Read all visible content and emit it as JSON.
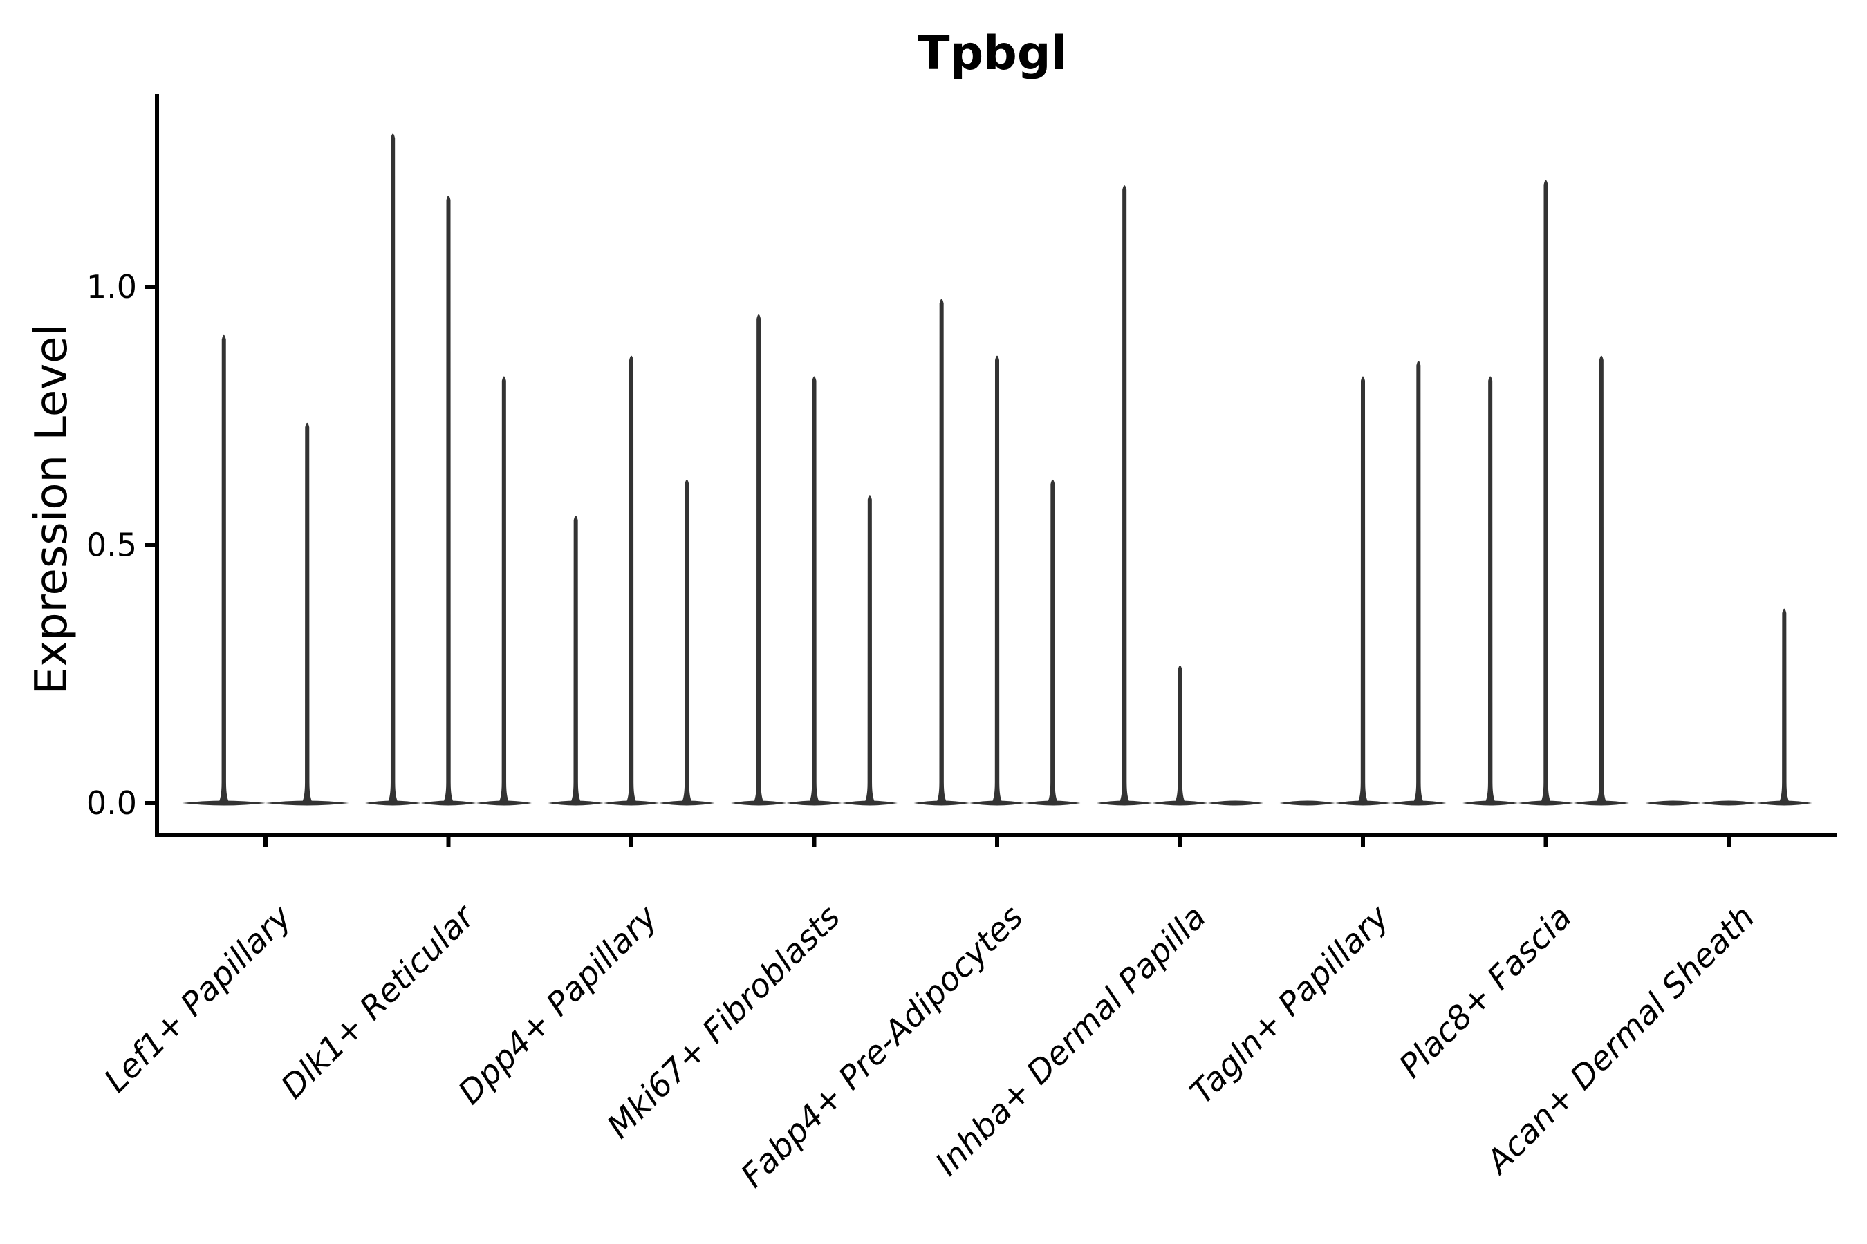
{
  "title": "Tpbgl",
  "chart_data": {
    "type": "violin",
    "title": "Tpbgl",
    "xlabel": "",
    "ylabel": "Expression Level",
    "ylim": [
      -0.062,
      1.368
    ],
    "grid": false,
    "legend": false,
    "yticks": [
      {
        "value": 0.0,
        "label": "0.0"
      },
      {
        "value": 0.5,
        "label": "0.5"
      },
      {
        "value": 1.0,
        "label": "1.0"
      }
    ],
    "categories": [
      "Lef1+ Papillary",
      "Dlk1+ Reticular",
      "Dpp4+ Papillary",
      "Mki67+ Fibroblasts",
      "Fabp4+ Pre-Adipocytes",
      "Inhba+ Dermal Papilla",
      "Tagln+ Papillary",
      "Plac8+ Fascia",
      "Acan+ Dermal Sheath"
    ],
    "series": [
      {
        "category": "Lef1+ Papillary",
        "violin_peaks": [
          0.91,
          0.74
        ]
      },
      {
        "category": "Dlk1+ Reticular",
        "violin_peaks": [
          1.3,
          1.18,
          0.83
        ]
      },
      {
        "category": "Dpp4+ Papillary",
        "violin_peaks": [
          0.56,
          0.87,
          0.63
        ]
      },
      {
        "category": "Mki67+ Fibroblasts",
        "violin_peaks": [
          0.95,
          0.83,
          0.6
        ]
      },
      {
        "category": "Fabp4+ Pre-Adipocytes",
        "violin_peaks": [
          0.98,
          0.87,
          0.63
        ]
      },
      {
        "category": "Inhba+ Dermal Papilla",
        "violin_peaks": [
          1.2,
          0.27,
          0.0
        ]
      },
      {
        "category": "Tagln+ Papillary",
        "violin_peaks": [
          0.0,
          0.83,
          0.86
        ]
      },
      {
        "category": "Plac8+ Fascia",
        "violin_peaks": [
          0.83,
          1.21,
          0.87
        ]
      },
      {
        "category": "Acan+ Dermal Sheath",
        "violin_peaks": [
          0.0,
          0.0,
          0.38
        ]
      }
    ],
    "colors": {
      "violin": "#333333",
      "axis": "#000000",
      "text": "#000000",
      "background": "#ffffff"
    }
  }
}
